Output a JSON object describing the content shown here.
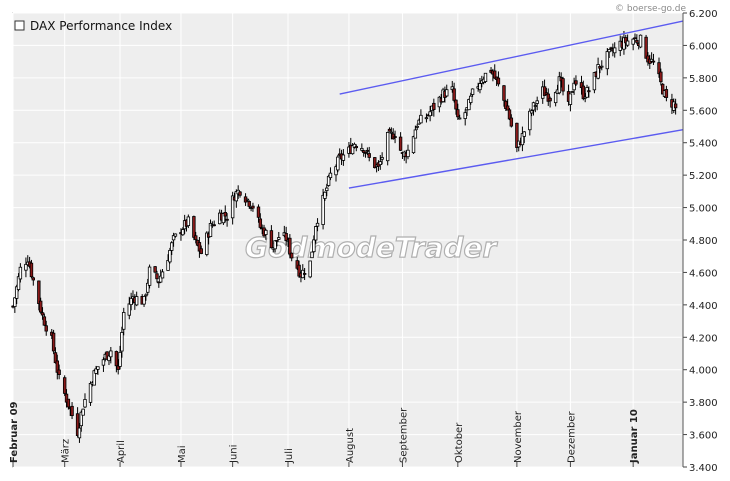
{
  "source": "© boerse-go.de",
  "watermark": "GodmodeTrader",
  "chart_data": {
    "type": "candlestick",
    "title": "DAX Performance Index",
    "legend": [
      {
        "name": "DAX Performance Index",
        "marker": "hollow-square",
        "position": "top-left"
      }
    ],
    "y_axis": {
      "position": "right",
      "min": 3400,
      "max": 6200,
      "ticks": [
        3400,
        3600,
        3800,
        4000,
        4200,
        4400,
        4600,
        4800,
        5000,
        5200,
        5400,
        5600,
        5800,
        6000,
        6200
      ],
      "tick_labels": [
        "3.400",
        "3.600",
        "3.800",
        "4.000",
        "4.200",
        "4.400",
        "4.600",
        "4.800",
        "5.000",
        "5.200",
        "5.400",
        "5.600",
        "5.800",
        "6.000",
        "6.200"
      ]
    },
    "x_axis": {
      "start": "2009-02-02",
      "end": "2010-01-31",
      "months": [
        {
          "label": "Februar 09",
          "date": "2009-02-02",
          "bold": true
        },
        {
          "label": "März",
          "date": "2009-03-02",
          "bold": false
        },
        {
          "label": "April",
          "date": "2009-04-01",
          "bold": false
        },
        {
          "label": "Mai",
          "date": "2009-05-04",
          "bold": false
        },
        {
          "label": "Juni",
          "date": "2009-06-01",
          "bold": false
        },
        {
          "label": "Juli",
          "date": "2009-07-01",
          "bold": false
        },
        {
          "label": "August",
          "date": "2009-08-03",
          "bold": false
        },
        {
          "label": "September",
          "date": "2009-09-01",
          "bold": false
        },
        {
          "label": "Oktober",
          "date": "2009-10-01",
          "bold": false
        },
        {
          "label": "November",
          "date": "2009-11-02",
          "bold": false
        },
        {
          "label": "Dezember",
          "date": "2009-12-01",
          "bold": false
        },
        {
          "label": "Januar 10",
          "date": "2010-01-04",
          "bold": true
        }
      ]
    },
    "grid": true,
    "series_name": "DAX Performance Index",
    "daily_close": [
      [
        "2009-02-02",
        4390
      ],
      [
        "2009-02-06",
        4620
      ],
      [
        "2009-02-10",
        4690
      ],
      [
        "2009-02-13",
        4550
      ],
      [
        "2009-02-18",
        4330
      ],
      [
        "2009-02-23",
        4180
      ],
      [
        "2009-02-27",
        3940
      ],
      [
        "2009-03-03",
        3820
      ],
      [
        "2009-03-06",
        3720
      ],
      [
        "2009-03-09",
        3620
      ],
      [
        "2009-03-12",
        3780
      ],
      [
        "2009-03-17",
        3950
      ],
      [
        "2009-03-20",
        4020
      ],
      [
        "2009-03-24",
        4080
      ],
      [
        "2009-03-27",
        4120
      ],
      [
        "2009-03-31",
        3990
      ],
      [
        "2009-04-03",
        4350
      ],
      [
        "2009-04-08",
        4450
      ],
      [
        "2009-04-14",
        4420
      ],
      [
        "2009-04-17",
        4610
      ],
      [
        "2009-04-22",
        4550
      ],
      [
        "2009-04-27",
        4700
      ],
      [
        "2009-04-30",
        4800
      ],
      [
        "2009-05-05",
        4880
      ],
      [
        "2009-05-08",
        4910
      ],
      [
        "2009-05-12",
        4780
      ],
      [
        "2009-05-15",
        4720
      ],
      [
        "2009-05-20",
        4880
      ],
      [
        "2009-05-25",
        4960
      ],
      [
        "2009-05-29",
        4950
      ],
      [
        "2009-06-02",
        5080
      ],
      [
        "2009-06-05",
        5110
      ],
      [
        "2009-06-09",
        5050
      ],
      [
        "2009-06-12",
        5010
      ],
      [
        "2009-06-16",
        4880
      ],
      [
        "2009-06-19",
        4840
      ],
      [
        "2009-06-23",
        4760
      ],
      [
        "2009-06-26",
        4820
      ],
      [
        "2009-06-30",
        4810
      ],
      [
        "2009-07-03",
        4700
      ],
      [
        "2009-07-08",
        4590
      ],
      [
        "2009-07-13",
        4660
      ],
      [
        "2009-07-16",
        4900
      ],
      [
        "2009-07-21",
        5080
      ],
      [
        "2009-07-24",
        5200
      ],
      [
        "2009-07-29",
        5300
      ],
      [
        "2009-08-03",
        5350
      ],
      [
        "2009-08-06",
        5400
      ],
      [
        "2009-08-11",
        5370
      ],
      [
        "2009-08-14",
        5300
      ],
      [
        "2009-08-19",
        5240
      ],
      [
        "2009-08-24",
        5430
      ],
      [
        "2009-08-28",
        5460
      ],
      [
        "2009-09-01",
        5320
      ],
      [
        "2009-09-04",
        5350
      ],
      [
        "2009-09-09",
        5520
      ],
      [
        "2009-09-14",
        5560
      ],
      [
        "2009-09-18",
        5620
      ],
      [
        "2009-09-23",
        5700
      ],
      [
        "2009-09-28",
        5720
      ],
      [
        "2009-10-01",
        5530
      ],
      [
        "2009-10-06",
        5600
      ],
      [
        "2009-10-09",
        5700
      ],
      [
        "2009-10-14",
        5800
      ],
      [
        "2009-10-19",
        5850
      ],
      [
        "2009-10-23",
        5750
      ],
      [
        "2009-10-28",
        5600
      ],
      [
        "2009-11-02",
        5360
      ],
      [
        "2009-11-05",
        5440
      ],
      [
        "2009-11-10",
        5600
      ],
      [
        "2009-11-16",
        5720
      ],
      [
        "2009-11-20",
        5680
      ],
      [
        "2009-11-25",
        5780
      ],
      [
        "2009-11-30",
        5620
      ],
      [
        "2009-12-03",
        5790
      ],
      [
        "2009-12-08",
        5700
      ],
      [
        "2009-12-11",
        5720
      ],
      [
        "2009-12-16",
        5860
      ],
      [
        "2009-12-21",
        5930
      ],
      [
        "2009-12-28",
        6010
      ],
      [
        "2010-01-04",
        6040
      ],
      [
        "2010-01-08",
        6030
      ],
      [
        "2010-01-12",
        5920
      ],
      [
        "2010-01-15",
        5890
      ],
      [
        "2010-01-20",
        5730
      ],
      [
        "2010-01-22",
        5660
      ],
      [
        "2010-01-26",
        5640
      ],
      [
        "2010-01-27",
        5610
      ]
    ],
    "trendlines": [
      {
        "name": "upper channel",
        "from": [
          "2009-07-29",
          5700
        ],
        "to": [
          "2010-01-31",
          6150
        ],
        "color": "#5b5bf0"
      },
      {
        "name": "lower channel",
        "from": [
          "2009-08-03",
          5120
        ],
        "to": [
          "2010-01-31",
          5480
        ],
        "color": "#5b5bf0"
      }
    ],
    "colors": {
      "down": "#8b1a1a",
      "up": "#ffffff",
      "outline": "#000000",
      "background": "#eeeeee",
      "grid": "#ffffff",
      "trendline": "#5b5bf0"
    }
  }
}
